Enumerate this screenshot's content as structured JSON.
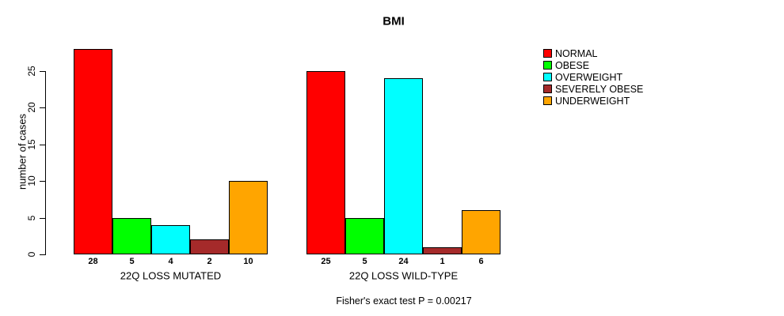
{
  "title": "BMI",
  "footer": "Fisher's exact test P = 0.00217",
  "chart_data": {
    "type": "bar",
    "title": "BMI",
    "xlabel": "",
    "ylabel": "number of cases",
    "ylim": [
      0,
      25
    ],
    "yticks": [
      0,
      5,
      10,
      15,
      20,
      25
    ],
    "grid": false,
    "legend_position": "right",
    "categories": [
      "NORMAL",
      "OBESE",
      "OVERWEIGHT",
      "SEVERELY OBESE",
      "UNDERWEIGHT"
    ],
    "colors": [
      "#FF0000",
      "#00FF00",
      "#00FFFF",
      "#A52A2A",
      "#FFA500"
    ],
    "groups": [
      {
        "label": "22Q LOSS MUTATED",
        "values": [
          28,
          5,
          4,
          2,
          10
        ]
      },
      {
        "label": "22Q LOSS WILD-TYPE",
        "values": [
          25,
          5,
          24,
          1,
          6
        ]
      }
    ],
    "bar_value_labels_shown": true,
    "annotation": "Fisher's exact test P = 0.00217"
  }
}
